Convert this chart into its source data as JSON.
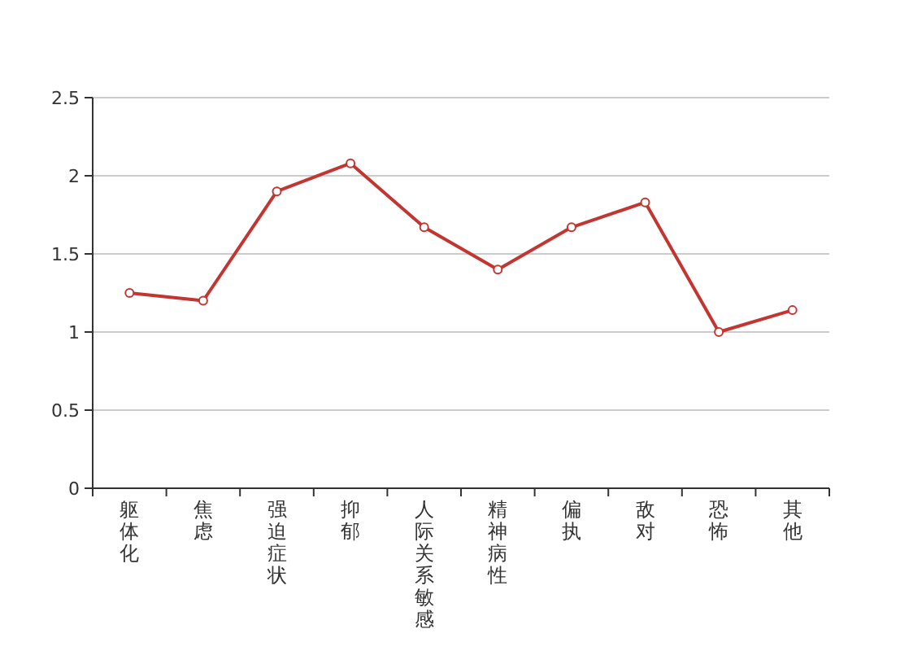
{
  "chart_data": {
    "type": "line",
    "categories": [
      "躯体化",
      "焦虑",
      "强迫症状",
      "抑郁",
      "人际关系敏感",
      "精神病性",
      "偏执",
      "敌对",
      "恐怖",
      "其他"
    ],
    "series": [
      {
        "color": "#c23531",
        "values": [
          1.25,
          1.2,
          1.9,
          2.08,
          1.67,
          1.4,
          1.67,
          1.83,
          1.0,
          1.14
        ]
      }
    ],
    "ylim": [
      0,
      2.5
    ],
    "yticks": [
      0,
      {
        "value": 0.5,
        "label": "0.5"
      },
      1,
      {
        "value": 1.5,
        "label": "1.5"
      },
      2,
      {
        "value": 2.5,
        "label": "2.5"
      }
    ],
    "grid": "y",
    "marker": "circle",
    "line_style": "solid"
  }
}
